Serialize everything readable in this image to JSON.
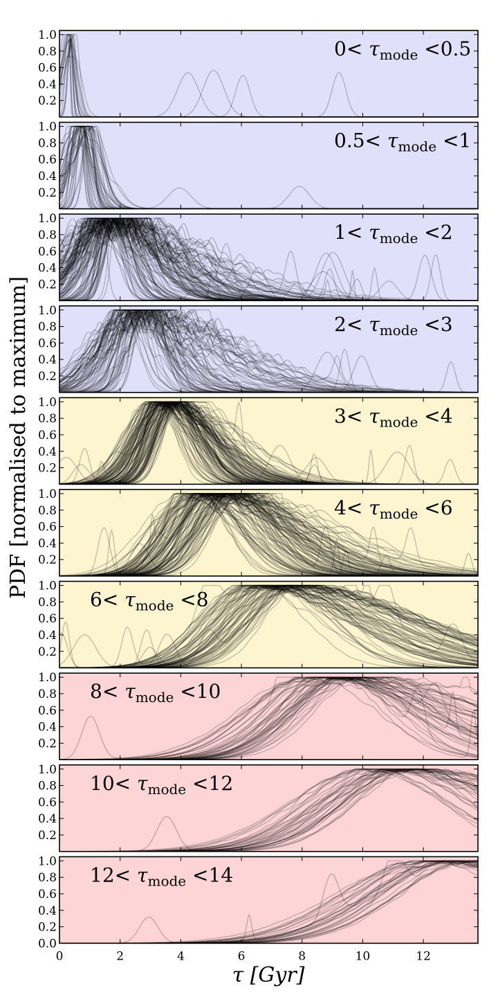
{
  "chart_data": {
    "type": "line",
    "xlabel": "τ [Gyr]",
    "ylabel": "PDF [normalised to maximum]",
    "xlim": [
      0,
      13.8
    ],
    "ylim": [
      0,
      1.05
    ],
    "x_ticks": [
      0,
      2,
      4,
      6,
      8,
      10,
      12
    ],
    "y_ticks": [
      0.2,
      0.4,
      0.6,
      0.8,
      1.0
    ],
    "y_ticks_bottom_panel": [
      0.0,
      0.2,
      0.4,
      0.6,
      0.8,
      1.0
    ],
    "line_color": "#000000",
    "line_opacity": 0.22,
    "panels": [
      {
        "label": {
          "lo": "0",
          "hi": "0.5"
        },
        "bg": "#e0e0fb",
        "label_pos": "top-right",
        "curves": 18,
        "mode_range": [
          0.25,
          0.45
        ],
        "spread": [
          0.06,
          0.35
        ],
        "tail": 0.25,
        "noise": 0.35
      },
      {
        "label": {
          "lo": "0.5",
          "hi": "1"
        },
        "bg": "#e0e0fb",
        "label_pos": "top-right",
        "curves": 40,
        "mode_range": [
          0.5,
          1.0
        ],
        "spread": [
          0.12,
          0.7
        ],
        "tail": 0.6,
        "noise": 0.4
      },
      {
        "label": {
          "lo": "1",
          "hi": "2"
        },
        "bg": "#e0e0fb",
        "label_pos": "top-right",
        "curves": 120,
        "mode_range": [
          1.1,
          2.0
        ],
        "spread": [
          0.15,
          1.4
        ],
        "tail": 2.5,
        "noise": 0.3
      },
      {
        "label": {
          "lo": "2",
          "hi": "3"
        },
        "bg": "#e0e0fb",
        "label_pos": "top-right",
        "curves": 80,
        "mode_range": [
          2.0,
          3.0
        ],
        "spread": [
          0.3,
          1.4
        ],
        "tail": 2.6,
        "noise": 0.3
      },
      {
        "label": {
          "lo": "3",
          "hi": "4"
        },
        "bg": "#fcf5d0",
        "label_pos": "top-right",
        "curves": 120,
        "mode_range": [
          3.0,
          4.0
        ],
        "spread": [
          0.45,
          1.0
        ],
        "tail": 2.4,
        "noise": 0.12
      },
      {
        "label": {
          "lo": "4",
          "hi": "6"
        },
        "bg": "#fcf5d0",
        "label_pos": "top-right",
        "curves": 110,
        "mode_range": [
          4.0,
          6.0
        ],
        "spread": [
          0.7,
          1.3
        ],
        "tail": 3.0,
        "noise": 0.1
      },
      {
        "label": {
          "lo": "6",
          "hi": "8"
        },
        "bg": "#fcf5d0",
        "label_pos": "top-left",
        "curves": 70,
        "mode_range": [
          6.0,
          8.0
        ],
        "spread": [
          1.1,
          1.7
        ],
        "tail": 3.2,
        "noise": 0.06
      },
      {
        "label": {
          "lo": "8",
          "hi": "10"
        },
        "bg": "#fdd5d6",
        "label_pos": "top-left",
        "curves": 45,
        "mode_range": [
          8.0,
          10.0
        ],
        "spread": [
          1.4,
          2.2
        ],
        "tail": 2.8,
        "noise": 0.05
      },
      {
        "label": {
          "lo": "10",
          "hi": "12"
        },
        "bg": "#fdd5d6",
        "label_pos": "top-left",
        "curves": 35,
        "mode_range": [
          10.0,
          12.0
        ],
        "spread": [
          1.8,
          2.6
        ],
        "tail": 2.2,
        "noise": 0.04
      },
      {
        "label": {
          "lo": "12",
          "hi": "14"
        },
        "bg": "#fdd5d6",
        "label_pos": "top-left",
        "curves": 30,
        "mode_range": [
          11.8,
          13.8
        ],
        "spread": [
          2.2,
          3.0
        ],
        "tail": 2.0,
        "noise": 0.04
      }
    ]
  }
}
